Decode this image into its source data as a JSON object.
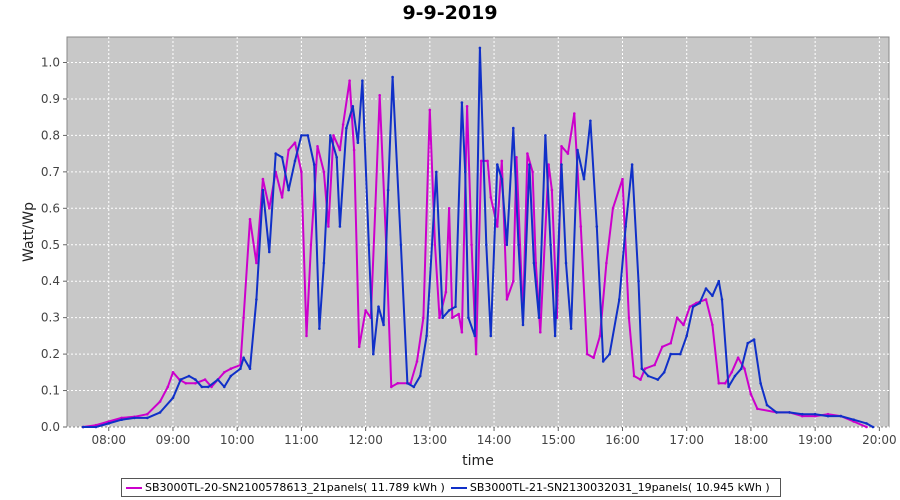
{
  "chart_data": {
    "type": "line",
    "title": "9-9-2019",
    "xlabel": "time",
    "ylabel": "Watt/Wp",
    "xlim": [
      7.35,
      20.15
    ],
    "ylim": [
      0.0,
      1.07
    ],
    "x_ticks": [
      "08:00",
      "09:00",
      "10:00",
      "11:00",
      "12:00",
      "13:00",
      "14:00",
      "15:00",
      "16:00",
      "17:00",
      "18:00",
      "19:00",
      "20:00"
    ],
    "x_tick_values": [
      8,
      9,
      10,
      11,
      12,
      13,
      14,
      15,
      16,
      17,
      18,
      19,
      20
    ],
    "y_ticks": [
      "0.0",
      "0.1",
      "0.2",
      "0.3",
      "0.4",
      "0.5",
      "0.6",
      "0.7",
      "0.8",
      "0.9",
      "1.0"
    ],
    "y_tick_values": [
      0.0,
      0.1,
      0.2,
      0.3,
      0.4,
      0.5,
      0.6,
      0.7,
      0.8,
      0.9,
      1.0
    ],
    "grid": true,
    "plot_background": "#c8c8c8",
    "legend_position": "bottom",
    "series": [
      {
        "name": "SB3000TL-20-SN2100578613_21panels( 11.789 kWh )",
        "color": "#cc00cc",
        "points": [
          [
            7.6,
            0.0
          ],
          [
            7.8,
            0.005
          ],
          [
            8.0,
            0.015
          ],
          [
            8.2,
            0.025
          ],
          [
            8.4,
            0.028
          ],
          [
            8.6,
            0.035
          ],
          [
            8.8,
            0.07
          ],
          [
            8.92,
            0.11
          ],
          [
            9.0,
            0.15
          ],
          [
            9.1,
            0.13
          ],
          [
            9.2,
            0.12
          ],
          [
            9.35,
            0.12
          ],
          [
            9.5,
            0.13
          ],
          [
            9.6,
            0.11
          ],
          [
            9.7,
            0.13
          ],
          [
            9.8,
            0.15
          ],
          [
            9.9,
            0.16
          ],
          [
            10.05,
            0.17
          ],
          [
            10.1,
            0.3
          ],
          [
            10.2,
            0.57
          ],
          [
            10.3,
            0.45
          ],
          [
            10.4,
            0.68
          ],
          [
            10.5,
            0.6
          ],
          [
            10.6,
            0.7
          ],
          [
            10.7,
            0.63
          ],
          [
            10.8,
            0.76
          ],
          [
            10.9,
            0.78
          ],
          [
            11.0,
            0.7
          ],
          [
            11.08,
            0.25
          ],
          [
            11.15,
            0.5
          ],
          [
            11.25,
            0.77
          ],
          [
            11.35,
            0.7
          ],
          [
            11.42,
            0.55
          ],
          [
            11.5,
            0.8
          ],
          [
            11.6,
            0.76
          ],
          [
            11.65,
            0.83
          ],
          [
            11.75,
            0.95
          ],
          [
            11.82,
            0.76
          ],
          [
            11.9,
            0.22
          ],
          [
            12.0,
            0.32
          ],
          [
            12.08,
            0.3
          ],
          [
            12.15,
            0.6
          ],
          [
            12.22,
            0.91
          ],
          [
            12.32,
            0.5
          ],
          [
            12.4,
            0.11
          ],
          [
            12.5,
            0.12
          ],
          [
            12.7,
            0.12
          ],
          [
            12.8,
            0.18
          ],
          [
            12.9,
            0.3
          ],
          [
            13.0,
            0.87
          ],
          [
            13.08,
            0.5
          ],
          [
            13.15,
            0.3
          ],
          [
            13.25,
            0.37
          ],
          [
            13.3,
            0.6
          ],
          [
            13.35,
            0.3
          ],
          [
            13.45,
            0.31
          ],
          [
            13.5,
            0.26
          ],
          [
            13.58,
            0.88
          ],
          [
            13.65,
            0.5
          ],
          [
            13.72,
            0.2
          ],
          [
            13.8,
            0.73
          ],
          [
            13.9,
            0.73
          ],
          [
            13.95,
            0.63
          ],
          [
            14.05,
            0.55
          ],
          [
            14.12,
            0.73
          ],
          [
            14.2,
            0.35
          ],
          [
            14.3,
            0.4
          ],
          [
            14.35,
            0.74
          ],
          [
            14.45,
            0.3
          ],
          [
            14.52,
            0.75
          ],
          [
            14.6,
            0.7
          ],
          [
            14.65,
            0.45
          ],
          [
            14.72,
            0.26
          ],
          [
            14.85,
            0.72
          ],
          [
            14.9,
            0.65
          ],
          [
            14.98,
            0.3
          ],
          [
            15.05,
            0.77
          ],
          [
            15.15,
            0.75
          ],
          [
            15.25,
            0.86
          ],
          [
            15.35,
            0.55
          ],
          [
            15.45,
            0.2
          ],
          [
            15.55,
            0.19
          ],
          [
            15.65,
            0.25
          ],
          [
            15.75,
            0.45
          ],
          [
            15.85,
            0.6
          ],
          [
            16.0,
            0.68
          ],
          [
            16.1,
            0.3
          ],
          [
            16.18,
            0.14
          ],
          [
            16.28,
            0.13
          ],
          [
            16.35,
            0.16
          ],
          [
            16.5,
            0.17
          ],
          [
            16.62,
            0.22
          ],
          [
            16.75,
            0.23
          ],
          [
            16.85,
            0.3
          ],
          [
            16.95,
            0.28
          ],
          [
            17.05,
            0.33
          ],
          [
            17.15,
            0.34
          ],
          [
            17.3,
            0.35
          ],
          [
            17.4,
            0.28
          ],
          [
            17.5,
            0.12
          ],
          [
            17.6,
            0.12
          ],
          [
            17.7,
            0.15
          ],
          [
            17.8,
            0.19
          ],
          [
            17.9,
            0.16
          ],
          [
            18.0,
            0.09
          ],
          [
            18.1,
            0.05
          ],
          [
            18.4,
            0.04
          ],
          [
            18.6,
            0.04
          ],
          [
            18.8,
            0.03
          ],
          [
            19.0,
            0.03
          ],
          [
            19.2,
            0.035
          ],
          [
            19.4,
            0.03
          ],
          [
            19.6,
            0.015
          ],
          [
            19.8,
            0.0
          ]
        ]
      },
      {
        "name": "SB3000TL-21-SN2130032031_19panels( 10.945 kWh )",
        "color": "#1030c8",
        "points": [
          [
            7.6,
            0.0
          ],
          [
            7.8,
            0.0
          ],
          [
            8.0,
            0.01
          ],
          [
            8.2,
            0.02
          ],
          [
            8.4,
            0.025
          ],
          [
            8.6,
            0.025
          ],
          [
            8.8,
            0.04
          ],
          [
            9.0,
            0.08
          ],
          [
            9.12,
            0.13
          ],
          [
            9.25,
            0.14
          ],
          [
            9.35,
            0.13
          ],
          [
            9.45,
            0.11
          ],
          [
            9.55,
            0.11
          ],
          [
            9.7,
            0.13
          ],
          [
            9.8,
            0.11
          ],
          [
            9.9,
            0.14
          ],
          [
            10.05,
            0.16
          ],
          [
            10.1,
            0.19
          ],
          [
            10.2,
            0.16
          ],
          [
            10.3,
            0.35
          ],
          [
            10.4,
            0.65
          ],
          [
            10.5,
            0.48
          ],
          [
            10.6,
            0.75
          ],
          [
            10.7,
            0.74
          ],
          [
            10.8,
            0.65
          ],
          [
            10.9,
            0.73
          ],
          [
            11.0,
            0.8
          ],
          [
            11.1,
            0.8
          ],
          [
            11.2,
            0.72
          ],
          [
            11.28,
            0.27
          ],
          [
            11.35,
            0.45
          ],
          [
            11.45,
            0.8
          ],
          [
            11.55,
            0.74
          ],
          [
            11.6,
            0.55
          ],
          [
            11.7,
            0.82
          ],
          [
            11.8,
            0.88
          ],
          [
            11.88,
            0.78
          ],
          [
            11.95,
            0.95
          ],
          [
            12.05,
            0.5
          ],
          [
            12.12,
            0.2
          ],
          [
            12.2,
            0.33
          ],
          [
            12.28,
            0.28
          ],
          [
            12.35,
            0.65
          ],
          [
            12.42,
            0.96
          ],
          [
            12.55,
            0.5
          ],
          [
            12.65,
            0.12
          ],
          [
            12.75,
            0.11
          ],
          [
            12.85,
            0.14
          ],
          [
            12.95,
            0.25
          ],
          [
            13.1,
            0.7
          ],
          [
            13.2,
            0.3
          ],
          [
            13.3,
            0.32
          ],
          [
            13.4,
            0.33
          ],
          [
            13.5,
            0.89
          ],
          [
            13.55,
            0.7
          ],
          [
            13.6,
            0.3
          ],
          [
            13.7,
            0.25
          ],
          [
            13.78,
            1.04
          ],
          [
            13.88,
            0.5
          ],
          [
            13.95,
            0.25
          ],
          [
            14.05,
            0.72
          ],
          [
            14.12,
            0.68
          ],
          [
            14.2,
            0.5
          ],
          [
            14.3,
            0.82
          ],
          [
            14.38,
            0.5
          ],
          [
            14.45,
            0.28
          ],
          [
            14.55,
            0.72
          ],
          [
            14.62,
            0.45
          ],
          [
            14.7,
            0.3
          ],
          [
            14.8,
            0.8
          ],
          [
            14.88,
            0.5
          ],
          [
            14.95,
            0.25
          ],
          [
            15.05,
            0.72
          ],
          [
            15.12,
            0.45
          ],
          [
            15.2,
            0.27
          ],
          [
            15.3,
            0.76
          ],
          [
            15.4,
            0.68
          ],
          [
            15.5,
            0.84
          ],
          [
            15.6,
            0.55
          ],
          [
            15.7,
            0.18
          ],
          [
            15.8,
            0.2
          ],
          [
            15.95,
            0.35
          ],
          [
            16.05,
            0.55
          ],
          [
            16.15,
            0.72
          ],
          [
            16.25,
            0.4
          ],
          [
            16.3,
            0.16
          ],
          [
            16.4,
            0.14
          ],
          [
            16.55,
            0.13
          ],
          [
            16.65,
            0.15
          ],
          [
            16.75,
            0.2
          ],
          [
            16.9,
            0.2
          ],
          [
            17.0,
            0.25
          ],
          [
            17.1,
            0.33
          ],
          [
            17.2,
            0.34
          ],
          [
            17.3,
            0.38
          ],
          [
            17.4,
            0.36
          ],
          [
            17.5,
            0.4
          ],
          [
            17.55,
            0.35
          ],
          [
            17.65,
            0.11
          ],
          [
            17.75,
            0.14
          ],
          [
            17.85,
            0.16
          ],
          [
            17.95,
            0.23
          ],
          [
            18.05,
            0.24
          ],
          [
            18.15,
            0.12
          ],
          [
            18.25,
            0.06
          ],
          [
            18.4,
            0.04
          ],
          [
            18.6,
            0.04
          ],
          [
            18.8,
            0.035
          ],
          [
            19.0,
            0.035
          ],
          [
            19.2,
            0.03
          ],
          [
            19.4,
            0.03
          ],
          [
            19.6,
            0.02
          ],
          [
            19.8,
            0.01
          ],
          [
            19.9,
            0.0
          ]
        ]
      }
    ]
  }
}
